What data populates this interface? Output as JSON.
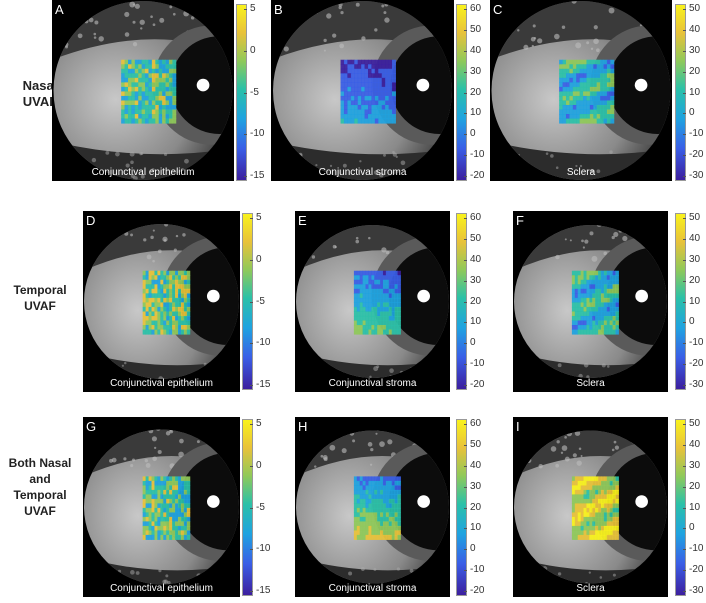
{
  "row_labels": [
    {
      "lines": [
        "Nasal",
        "UVAF"
      ]
    },
    {
      "lines": [
        "Temporal",
        "UVAF"
      ]
    },
    {
      "lines": [
        "Both Nasal",
        "and",
        "Temporal",
        "UVAF"
      ]
    }
  ],
  "panels": [
    {
      "letter": "A",
      "caption": "Conjunctival epithelium",
      "ticks": [
        "5",
        "0",
        "-5",
        "-10",
        "-15"
      ]
    },
    {
      "letter": "B",
      "caption": "Conjunctival stroma",
      "ticks": [
        "60",
        "50",
        "40",
        "30",
        "20",
        "10",
        "0",
        "-10",
        "-20"
      ]
    },
    {
      "letter": "C",
      "caption": "Sclera",
      "ticks": [
        "50",
        "40",
        "30",
        "20",
        "10",
        "0",
        "-10",
        "-20",
        "-30"
      ]
    },
    {
      "letter": "D",
      "caption": "Conjunctival epithelium",
      "ticks": [
        "5",
        "0",
        "-5",
        "-10",
        "-15"
      ]
    },
    {
      "letter": "E",
      "caption": "Conjunctival stroma",
      "ticks": [
        "60",
        "50",
        "40",
        "30",
        "20",
        "10",
        "0",
        "-10",
        "-20"
      ]
    },
    {
      "letter": "F",
      "caption": "Sclera",
      "ticks": [
        "50",
        "40",
        "30",
        "20",
        "10",
        "0",
        "-10",
        "-20",
        "-30"
      ]
    },
    {
      "letter": "G",
      "caption": "Conjunctival epithelium",
      "ticks": [
        "5",
        "0",
        "-5",
        "-10",
        "-15"
      ]
    },
    {
      "letter": "H",
      "caption": "Conjunctival stroma",
      "ticks": [
        "60",
        "50",
        "40",
        "30",
        "20",
        "10",
        "0",
        "-10",
        "-20"
      ]
    },
    {
      "letter": "I",
      "caption": "Sclera",
      "ticks": [
        "50",
        "40",
        "30",
        "20",
        "10",
        "0",
        "-10",
        "-20",
        "-30"
      ]
    }
  ],
  "colormap": [
    "#3c1f9e",
    "#3a5ee6",
    "#1fa3e0",
    "#2bc1a8",
    "#8fc95a",
    "#e8c23a",
    "#f9f21c"
  ]
}
